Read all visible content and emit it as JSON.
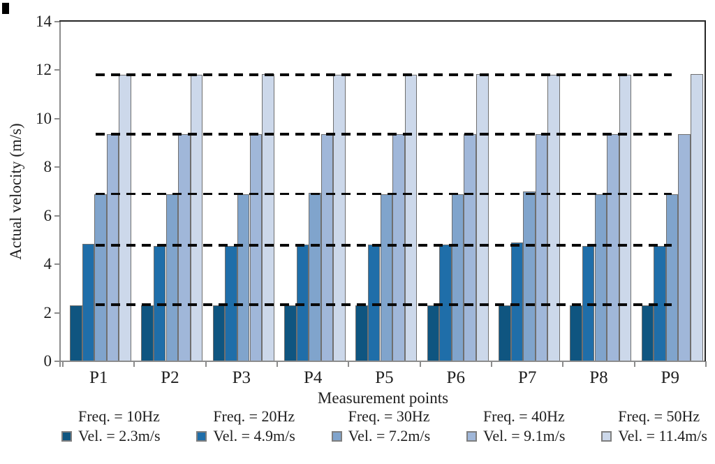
{
  "figure": {
    "y_axis_title": "Actual velocity (m/s)",
    "x_axis_title": "Measurement points"
  },
  "chart_data": {
    "type": "bar",
    "title": "",
    "xlabel": "Measurement points",
    "ylabel": "Actual velocity (m/s)",
    "categories": [
      "P1",
      "P2",
      "P3",
      "P4",
      "P5",
      "P6",
      "P7",
      "P8",
      "P9"
    ],
    "ylim": [
      0,
      14
    ],
    "y_ticks": [
      0,
      2,
      4,
      6,
      8,
      10,
      12,
      14
    ],
    "grid": "horizontal dashed reference lines at series velocity levels",
    "legend_position": "bottom",
    "series": [
      {
        "name": "Freq. = 10Hz, Vel. = 2.3m/s",
        "color": "#0f5580",
        "values": [
          2.3,
          2.3,
          2.3,
          2.3,
          2.3,
          2.3,
          2.3,
          2.3,
          2.3
        ]
      },
      {
        "name": "Freq. = 20Hz, Vel. = 4.9m/s",
        "color": "#1f6ea9",
        "values": [
          4.85,
          4.75,
          4.75,
          4.8,
          4.8,
          4.8,
          4.9,
          4.75,
          4.75
        ]
      },
      {
        "name": "Freq. = 30Hz, Vel. = 7.2m/s",
        "color": "#80a4cc",
        "values": [
          6.9,
          6.9,
          6.9,
          6.95,
          6.9,
          6.9,
          7.0,
          6.9,
          6.9
        ]
      },
      {
        "name": "Freq. = 40Hz, Vel. = 9.1m/s",
        "color": "#a0b7d9",
        "values": [
          9.35,
          9.35,
          9.35,
          9.35,
          9.35,
          9.35,
          9.35,
          9.35,
          9.35
        ]
      },
      {
        "name": "Freq. = 50Hz, Vel. = 11.4m/s",
        "color": "#ccd8ea",
        "values": [
          11.8,
          11.8,
          11.85,
          11.8,
          11.8,
          11.85,
          11.8,
          11.8,
          11.85
        ]
      }
    ],
    "dashed_reference_lines": [
      2.33,
      4.78,
      6.9,
      9.35,
      11.8
    ]
  },
  "legend": {
    "entries": [
      {
        "line1": "Freq. = 10Hz",
        "line2": "Vel. = 2.3m/s",
        "color": "#0f5580"
      },
      {
        "line1": "Freq. = 20Hz",
        "line2": "Vel. = 4.9m/s",
        "color": "#1f6ea9"
      },
      {
        "line1": "Freq. = 30Hz",
        "line2": "Vel. = 7.2m/s",
        "color": "#80a4cc"
      },
      {
        "line1": "Freq. = 40Hz",
        "line2": "Vel. = 9.1m/s",
        "color": "#a0b7d9"
      },
      {
        "line1": "Freq. = 50Hz",
        "line2": "Vel. = 11.4m/s",
        "color": "#ccd8ea"
      }
    ]
  },
  "colors": {
    "bar_border": "#6f6f6f",
    "axis_line": "#8c8c8c",
    "frame_line": "#262626",
    "dash_line": "#0a0a0a",
    "text": "#1f1f1f"
  }
}
